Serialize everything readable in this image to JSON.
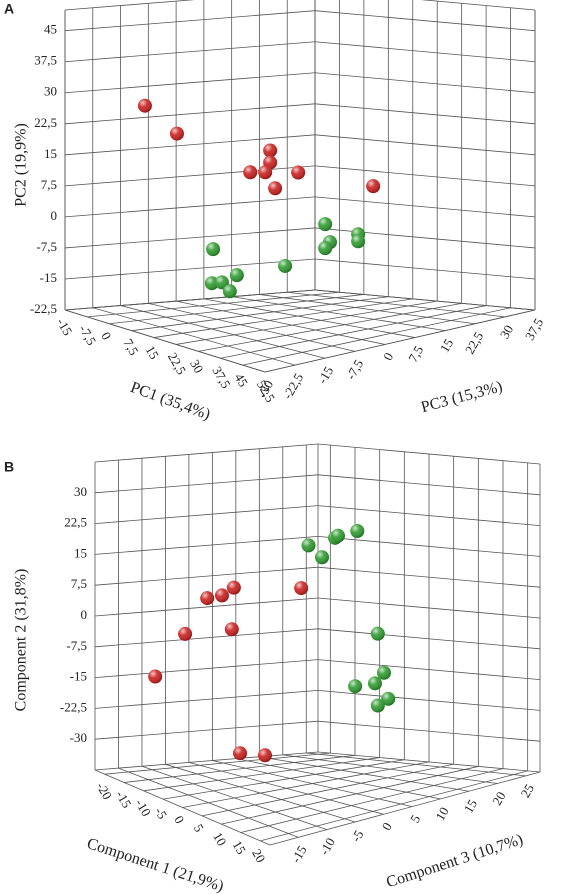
{
  "chart_data": [
    {
      "type": "scatter3d",
      "panel_label": "A",
      "xlabel": "PC1 (35,4%)",
      "ylabel": "PC2 (19,9%)",
      "zlabel": "PC3 (15,3%)",
      "xlim": [
        -15,
        52.5
      ],
      "ylim": [
        -22.5,
        50
      ],
      "zlim": [
        -30,
        37.5
      ],
      "xticks": [
        -15,
        {
          "value": -7.5,
          "label": "-7,5"
        },
        0,
        {
          "value": 7.5,
          "label": "7,5"
        },
        15,
        {
          "value": 22.5,
          "label": "22,5"
        },
        30,
        {
          "value": 37.5,
          "label": "37,5"
        },
        45,
        {
          "value": 52.5,
          "label": "52,5"
        }
      ],
      "yticks": [
        {
          "value": -22.5,
          "label": "-22,5"
        },
        -15,
        {
          "value": -7.5,
          "label": "-7,5"
        },
        0,
        {
          "value": 7.5,
          "label": "7,5"
        },
        15,
        {
          "value": 22.5,
          "label": "22,5"
        },
        30,
        {
          "value": 37.5,
          "label": "37,5"
        },
        45
      ],
      "zticks": [
        -30,
        {
          "value": -22.5,
          "label": "-22,5"
        },
        -15,
        {
          "value": -7.5,
          "label": "-7,5"
        },
        0,
        {
          "value": 7.5,
          "label": "7,5"
        },
        15,
        {
          "value": 22.5,
          "label": "22,5"
        },
        30,
        {
          "value": 37.5,
          "label": "37,5"
        }
      ],
      "series": [
        {
          "color": "#c8201e",
          "x": [
            -5.1,
            5.5,
            10.7,
            10.7,
            4.3,
            9.1,
            12.3,
            19.7,
            18.8
          ],
          "y": [
            27.8,
            23.1,
            17.4,
            14.5,
            11.2,
            11.9,
            8.5,
            13.4,
            7.0
          ],
          "z": [
            -16.5,
            -16.5,
            3.8,
            3.8,
            3.8,
            3.8,
            3.8,
            3.8,
            24.0
          ]
        },
        {
          "color": "#2f9a2f",
          "x": [
            0.6,
            8.6,
            11.9,
            14.5,
            16.8,
            15.5,
            3.8,
            5.3,
            3.8,
            14.1,
            14.1
          ],
          "y": [
            -7.2,
            -13.3,
            -12.5,
            -14.2,
            -9.9,
            -9.8,
            -3.7,
            -7.9,
            -9.5,
            -5.1,
            -6.8
          ],
          "z": [
            -3.0,
            -9.8,
            -9.8,
            -9.8,
            -9.8,
            3.8,
            24.0,
            24.0,
            24.0,
            24.0,
            24.0
          ]
        }
      ]
    },
    {
      "type": "scatter3d",
      "panel_label": "B",
      "xlabel": "Component 1 (21,9%)",
      "ylabel": "Component 2 (31,8%)",
      "zlabel": "Component 3 (10,7%)",
      "xlim": [
        -22.5,
        22.5
      ],
      "ylim": [
        -37.5,
        37.5
      ],
      "zlim": [
        -20,
        27.5
      ],
      "xticks": [
        -20,
        -15,
        -10,
        -5,
        0,
        5,
        10,
        15,
        20
      ],
      "yticks": [
        -30,
        {
          "value": -22.5,
          "label": "-22,5"
        },
        -15,
        {
          "value": -7.5,
          "label": "-7,5"
        },
        0,
        {
          "value": 7.5,
          "label": "7,5"
        },
        15,
        {
          "value": 22.5,
          "label": "22,5"
        },
        30
      ],
      "zticks": [
        -15,
        -10,
        -5,
        0,
        5,
        10,
        15,
        20,
        25
      ],
      "series": [
        {
          "color": "#c8201e",
          "x": [
            -18.7,
            -11.4,
            -6.0,
            -2.4,
            0.5,
            0.0,
            -1.1,
            2.0,
            8.1
          ],
          "y": [
            -14.3,
            -1.4,
            9.2,
            11.1,
            14.0,
            3.7,
            10.1,
            -25.8,
            -24.2
          ],
          "z": [
            -10.5,
            -10.5,
            -10.5,
            -10.5,
            -10.5,
            -10.5,
            3.8,
            -10.5,
            -10.5
          ]
        },
        {
          "color": "#2f9a2f",
          "x": [
            -19.9,
            -17.1,
            -14.4,
            -13.8,
            -9.8,
            -0.4,
            -5.2,
            -1.0,
            0.9,
            1.8,
            -0.4
          ],
          "y": [
            13.6,
            11.1,
            16.2,
            16.8,
            18.5,
            -4.1,
            -17.7,
            -16.3,
            -13.4,
            -19.6,
            -21.6
          ],
          "z": [
            22.8,
            22.8,
            22.8,
            22.8,
            22.8,
            18.0,
            18.0,
            18.0,
            18.0,
            18.0,
            18.0
          ]
        }
      ]
    }
  ]
}
